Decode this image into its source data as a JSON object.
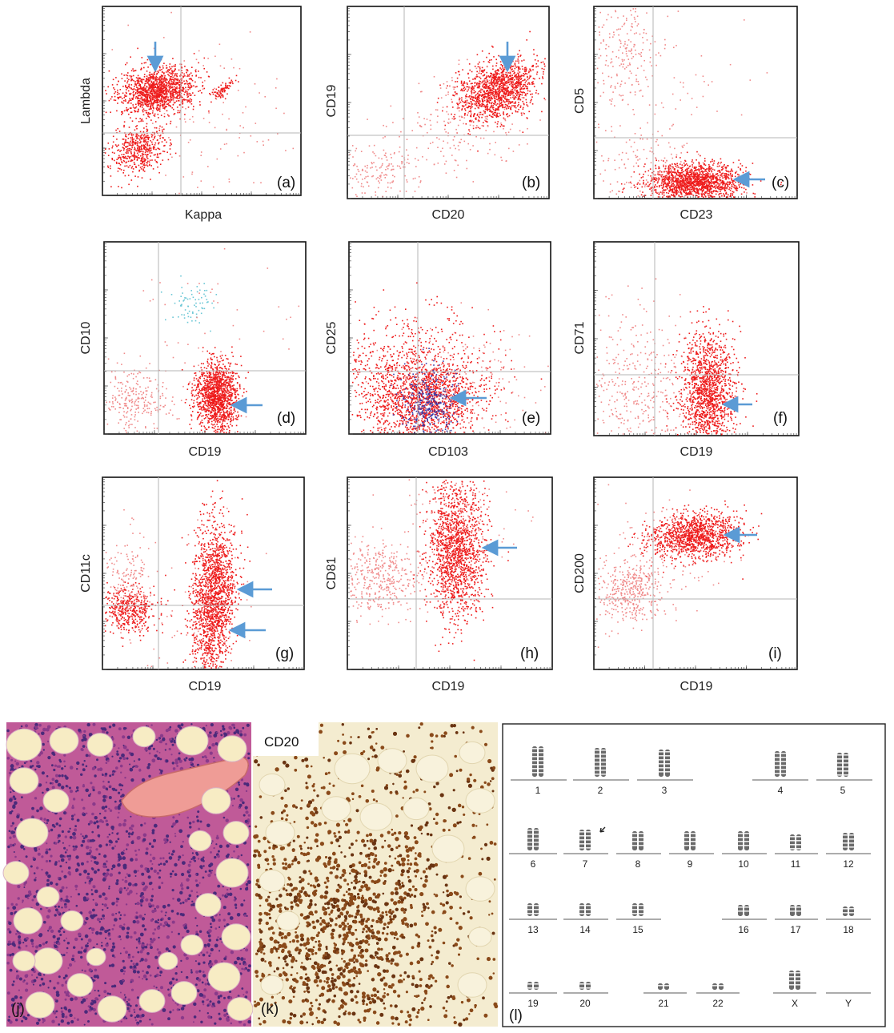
{
  "colors": {
    "dot": "#ee1c1c",
    "dot_light": "#f08a8a",
    "arrow": "#5b9bd5",
    "grid": "#b5b5b5",
    "frame": "#111111",
    "cyan_dots": "#6cc7d6",
    "blue_dots": "#3b3aa8",
    "he_background": "#f4e7c2",
    "he_stroma": "#b4478a",
    "he_nuclei": "#4a2a7a",
    "bone": "#ef9c96",
    "ihc_background": "#f4ecd0",
    "ihc_stain": "#8a4a1a",
    "chromosome": "#6a6a6a"
  },
  "flow_panels": [
    {
      "letter": "(a)",
      "xlabel": "Kappa",
      "ylabel": "Lambda",
      "arrow": "down"
    },
    {
      "letter": "(b)",
      "xlabel": "CD20",
      "ylabel": "CD19",
      "arrow": "down"
    },
    {
      "letter": "(c)",
      "xlabel": "CD23",
      "ylabel": "CD5",
      "arrow": "left"
    },
    {
      "letter": "(d)",
      "xlabel": "CD19",
      "ylabel": "CD10",
      "arrow": "left"
    },
    {
      "letter": "(e)",
      "xlabel": "CD103",
      "ylabel": "CD25",
      "arrow": "left"
    },
    {
      "letter": "(f)",
      "xlabel": "CD19",
      "ylabel": "CD71",
      "arrow": "left"
    },
    {
      "letter": "(g)",
      "xlabel": "CD19",
      "ylabel": "CD11c",
      "arrow": "left"
    },
    {
      "letter": "(h)",
      "xlabel": "CD19",
      "ylabel": "CD81",
      "arrow": "left"
    },
    {
      "letter": "(i)",
      "xlabel": "CD19",
      "ylabel": "CD200",
      "arrow": "left"
    }
  ],
  "histology": {
    "he_letter": "(j)",
    "ihc_letter": "(k)",
    "ihc_stain_label": "CD20"
  },
  "karyotype": {
    "letter": "(l)",
    "labels": [
      "1",
      "2",
      "3",
      "4",
      "5",
      "6",
      "7",
      "8",
      "9",
      "10",
      "11",
      "12",
      "13",
      "14",
      "15",
      "16",
      "17",
      "18",
      "19",
      "20",
      "21",
      "22",
      "X",
      "Y"
    ]
  }
}
